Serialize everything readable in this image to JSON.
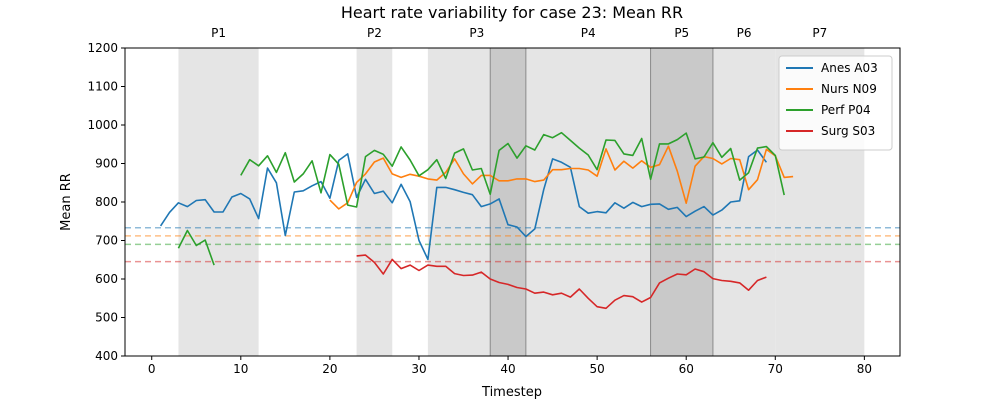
{
  "chart_data": {
    "type": "line",
    "title": "Heart rate variability for case 23: Mean RR",
    "xlabel": "Timestep",
    "ylabel": "Mean RR",
    "xlim": [
      -3,
      84
    ],
    "ylim": [
      400,
      1200
    ],
    "xticks": [
      0,
      10,
      20,
      30,
      40,
      50,
      60,
      70,
      80
    ],
    "yticks": [
      400,
      500,
      600,
      700,
      800,
      900,
      1000,
      1100,
      1200
    ],
    "grid": false,
    "legend_position": "top-right",
    "phases": [
      {
        "label": "P1",
        "start": 3,
        "end": 12
      },
      {
        "label": "P2",
        "start": 23,
        "end": 27
      },
      {
        "label": "P3",
        "start": 31,
        "end": 42
      },
      {
        "label": "P4",
        "start": 42,
        "end": 56
      },
      {
        "label": "P5",
        "start": 56,
        "end": 63
      },
      {
        "label": "P6",
        "start": 63,
        "end": 70
      },
      {
        "label": "P7",
        "start": 70,
        "end": 80
      }
    ],
    "dark_overlays": [
      {
        "start": 38,
        "end": 42
      },
      {
        "start": 56,
        "end": 63
      }
    ],
    "series": [
      {
        "name": "Anes A03",
        "color": "#1f77b4",
        "baseline": 733,
        "segments": [
          {
            "x": [
              1,
              2,
              3,
              4,
              5,
              6,
              7,
              8,
              9,
              10,
              11,
              12,
              13,
              14,
              15,
              16,
              17,
              18,
              19,
              20,
              21,
              22,
              23,
              24,
              25,
              26,
              27,
              28,
              29,
              30,
              31,
              32,
              33,
              34,
              35,
              36,
              37,
              38,
              39,
              40,
              41,
              42,
              43,
              44,
              45,
              46,
              47,
              48,
              49,
              50,
              51,
              52,
              53,
              54,
              55,
              56,
              57,
              58,
              59,
              60,
              61,
              62,
              63,
              64,
              65,
              66,
              67,
              68,
              69
            ],
            "y": [
              738,
              773,
              798,
              788,
              804,
              806,
              774,
              774,
              813,
              822,
              808,
              757,
              888,
              850,
              713,
              826,
              829,
              842,
              853,
              810,
              908,
              925,
              812,
              859,
              822,
              828,
              798,
              846,
              801,
              700,
              651,
              838,
              838,
              832,
              825,
              819,
              788,
              795,
              808,
              741,
              735,
              710,
              730,
              832,
              912,
              903,
              890,
              788,
              771,
              775,
              772,
              798,
              784,
              799,
              788,
              794,
              795,
              781,
              786,
              762,
              776,
              788,
              766,
              779,
              800,
              803,
              918,
              935,
              903
            ]
          }
        ]
      },
      {
        "name": "Nurs N09",
        "color": "#ff7f0e",
        "baseline": 712,
        "segments": [
          {
            "x": [
              20,
              21,
              22,
              23,
              24,
              25,
              26,
              27,
              28,
              29,
              30,
              31,
              32,
              33,
              34,
              35,
              36,
              37,
              38,
              39,
              40,
              41,
              42,
              43,
              44,
              45,
              46,
              47,
              48,
              49,
              50,
              51,
              52,
              53,
              54,
              55,
              56,
              57,
              58,
              59,
              60,
              61,
              62,
              63,
              64,
              65,
              66,
              67,
              68,
              69,
              70,
              71,
              72
            ],
            "y": [
              805,
              782,
              798,
              851,
              873,
              904,
              914,
              873,
              864,
              872,
              867,
              860,
              857,
              877,
              912,
              873,
              847,
              869,
              869,
              855,
              855,
              860,
              860,
              853,
              857,
              884,
              884,
              887,
              887,
              883,
              867,
              938,
              883,
              906,
              888,
              907,
              890,
              897,
              945,
              880,
              797,
              893,
              918,
              913,
              899,
              913,
              910,
              832,
              858,
              937,
              920,
              864,
              866
            ]
          }
        ]
      },
      {
        "name": "Perf P04",
        "color": "#2ca02c",
        "baseline": 690,
        "segments": [
          {
            "x": [
              3,
              4,
              5,
              6,
              7
            ],
            "y": [
              680,
              726,
              687,
              701,
              636
            ]
          },
          {
            "x": [
              10,
              11,
              12,
              13,
              14,
              15,
              16,
              17,
              18,
              19,
              20,
              21,
              22,
              23,
              24,
              25,
              26,
              27,
              28,
              29,
              30,
              31,
              32,
              33,
              34,
              35,
              36,
              37,
              38,
              39,
              40,
              41,
              42,
              43,
              44,
              45,
              46,
              47,
              48,
              49,
              50,
              51,
              52,
              53,
              54,
              55,
              56,
              57,
              58,
              59,
              60,
              61,
              62,
              63,
              64,
              65,
              66,
              67,
              68,
              69,
              70,
              71
            ],
            "y": [
              869,
              910,
              894,
              920,
              877,
              928,
              852,
              873,
              907,
              824,
              923,
              898,
              792,
              787,
              918,
              934,
              924,
              893,
              943,
              909,
              868,
              884,
              910,
              861,
              927,
              938,
              883,
              887,
              820,
              934,
              952,
              914,
              946,
              935,
              975,
              967,
              980,
              960,
              940,
              922,
              884,
              961,
              960,
              925,
              921,
              965,
              859,
              951,
              951,
              962,
              979,
              912,
              917,
              954,
              916,
              939,
              857,
              876,
              940,
              944,
              921,
              818
            ]
          }
        ]
      },
      {
        "name": "Surg S03",
        "color": "#d62728",
        "baseline": 645,
        "segments": [
          {
            "x": [
              23,
              24,
              25,
              26,
              27,
              28,
              29,
              30,
              31,
              32,
              33,
              34,
              35,
              36,
              37,
              38,
              39,
              40,
              41,
              42,
              43,
              44,
              45,
              46,
              47,
              48,
              49,
              50,
              51,
              52,
              53,
              54,
              55,
              56,
              57,
              58,
              59,
              60,
              61,
              62,
              63,
              64,
              65,
              66,
              67,
              68,
              69
            ],
            "y": [
              660,
              662,
              643,
              613,
              651,
              627,
              636,
              622,
              636,
              633,
              633,
              614,
              609,
              610,
              618,
              600,
              591,
              586,
              578,
              574,
              563,
              566,
              559,
              563,
              553,
              574,
              550,
              528,
              524,
              545,
              557,
              554,
              540,
              552,
              590,
              602,
              613,
              611,
              626,
              619,
              601,
              596,
              594,
              590,
              571,
              596,
              605
            ]
          }
        ]
      }
    ]
  }
}
